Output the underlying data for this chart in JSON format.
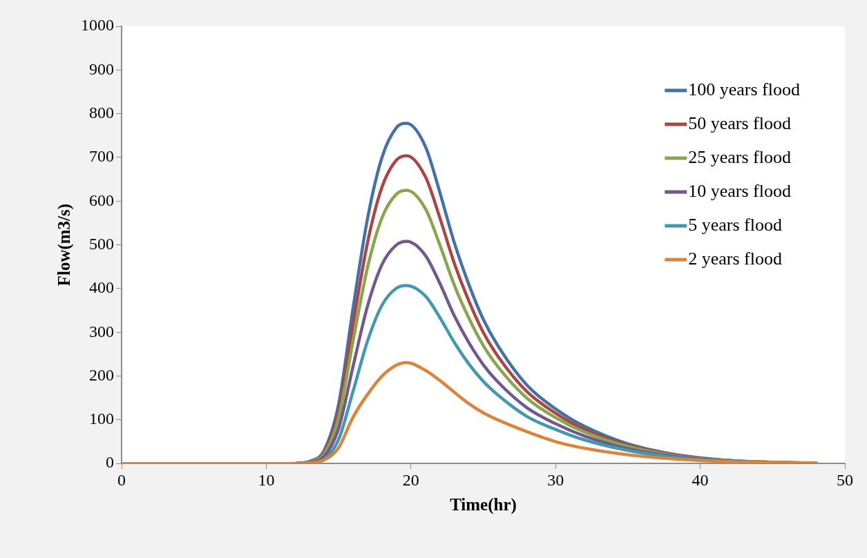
{
  "chart_data": {
    "type": "line",
    "xlabel": "Time(hr)",
    "ylabel": "Flow(m3/s)",
    "x": [
      0,
      10,
      12,
      13,
      14,
      15,
      16,
      17,
      18,
      19,
      19.7,
      21,
      22,
      23,
      24,
      25,
      26,
      28,
      30,
      32,
      35,
      38,
      40,
      43,
      45,
      48
    ],
    "series": [
      {
        "name": "100 years flood",
        "color": "#4472a8",
        "values": [
          null,
          null,
          0,
          5,
          30,
          135,
          355,
          560,
          700,
          768,
          778,
          725,
          620,
          505,
          410,
          330,
          270,
          180,
          125,
          85,
          45,
          22,
          13,
          5,
          3,
          1
        ]
      },
      {
        "name": "50 years flood",
        "color": "#aa4643",
        "values": [
          null,
          null,
          0,
          4,
          26,
          120,
          318,
          505,
          632,
          694,
          704,
          656,
          562,
          458,
          372,
          300,
          246,
          165,
          115,
          78,
          42,
          21,
          12,
          5,
          3,
          1
        ]
      },
      {
        "name": "25 years flood",
        "color": "#89a54e",
        "values": [
          null,
          null,
          0,
          4,
          22,
          105,
          280,
          448,
          562,
          616,
          625,
          583,
          500,
          408,
          333,
          270,
          222,
          150,
          105,
          72,
          39,
          19,
          11,
          5,
          3,
          1
        ]
      },
      {
        "name": "10 years flood",
        "color": "#71588f",
        "values": [
          null,
          null,
          0,
          3,
          16,
          80,
          222,
          360,
          455,
          500,
          508,
          476,
          412,
          338,
          277,
          226,
          187,
          128,
          91,
          63,
          34,
          17,
          10,
          4,
          2,
          1
        ]
      },
      {
        "name": "5 years flood",
        "color": "#4198af",
        "values": [
          null,
          null,
          0,
          2,
          10,
          55,
          165,
          280,
          362,
          401,
          407,
          383,
          334,
          277,
          228,
          188,
          157,
          108,
          78,
          54,
          30,
          15,
          9,
          4,
          2,
          1
        ]
      },
      {
        "name": "2 years flood",
        "color": "#db843d",
        "values": [
          0,
          0,
          0,
          1,
          8,
          36,
          106,
          158,
          200,
          225,
          231,
          213,
          190,
          163,
          137,
          116,
          100,
          73,
          50,
          35,
          20,
          11,
          7,
          3,
          2,
          1
        ]
      }
    ],
    "xlim": [
      0,
      50
    ],
    "xticks": [
      0,
      10,
      20,
      30,
      40,
      50
    ],
    "ylim": [
      0,
      1000
    ],
    "yticks": [
      0,
      100,
      200,
      300,
      400,
      500,
      600,
      700,
      800,
      900,
      1000
    ],
    "grid": false,
    "legend": "top right",
    "marker": "none",
    "line_style": "solid"
  }
}
